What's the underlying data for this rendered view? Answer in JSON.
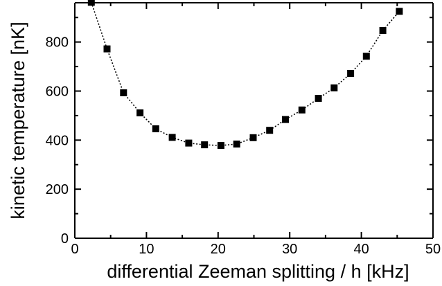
{
  "chart_data": {
    "type": "line",
    "title": "",
    "xlabel": "differential Zeeman splitting / h [kHz]",
    "ylabel": "kinetic temperature [nK]",
    "xlim": [
      0,
      50
    ],
    "ylim": [
      0,
      960
    ],
    "x_ticks": [
      0,
      10,
      20,
      30,
      40,
      50
    ],
    "y_ticks": [
      0,
      200,
      400,
      600,
      800
    ],
    "x_minor_ticks": [
      5,
      15,
      25,
      35,
      45
    ],
    "y_minor_ticks": [
      100,
      300,
      500,
      700,
      900
    ],
    "grid": false,
    "marker": "square",
    "line_style": "dotted",
    "color": "#000000",
    "series": [
      {
        "x": [
          2.3,
          4.5,
          6.8,
          9.1,
          11.3,
          13.6,
          15.9,
          18.1,
          20.4,
          22.6,
          24.9,
          27.2,
          29.4,
          31.7,
          34.0,
          36.2,
          38.5,
          40.7,
          43.0,
          45.3
        ],
        "y": [
          962,
          772,
          593,
          511,
          446,
          411,
          388,
          381,
          378,
          384,
          410,
          440,
          484,
          523,
          570,
          613,
          672,
          742,
          847,
          925
        ]
      }
    ]
  }
}
